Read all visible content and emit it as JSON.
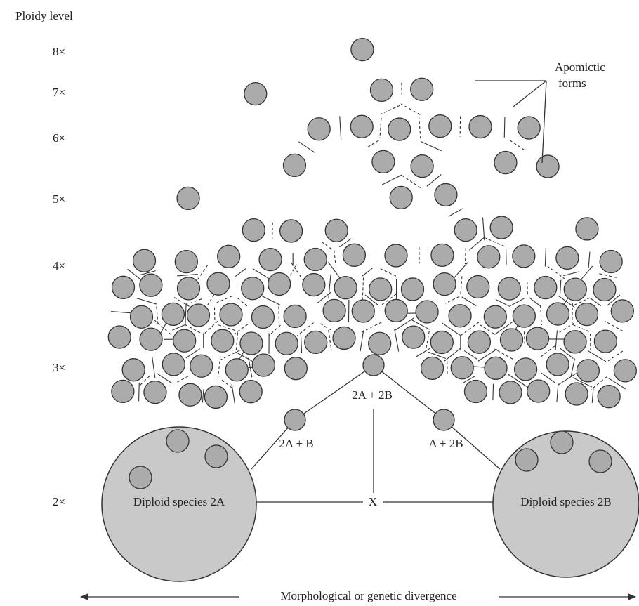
{
  "y_axis": {
    "title": "Ploidy level",
    "levels": [
      "8×",
      "7×",
      "6×",
      "5×",
      "4×",
      "3×",
      "2×"
    ]
  },
  "annotation": {
    "lines": [
      "Apomictic",
      "forms"
    ]
  },
  "hybrids": {
    "top": "2A + 2B",
    "left": "2A + B",
    "right": "A + 2B",
    "cross": "X"
  },
  "parents": {
    "left": "Diploid species 2A",
    "right": "Diploid species 2B"
  },
  "x_axis": {
    "title": "Morphological or genetic divergence"
  }
}
